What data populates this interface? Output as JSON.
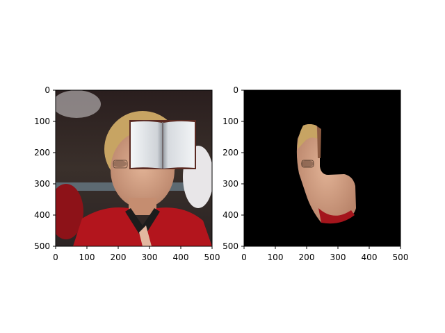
{
  "panels": [
    {
      "id": "left",
      "description_free": true,
      "x_ticks": [
        "0",
        "100",
        "200",
        "300",
        "400",
        "500"
      ],
      "y_ticks": [
        "0",
        "100",
        "200",
        "300",
        "400",
        "500"
      ]
    },
    {
      "id": "right",
      "x_ticks": [
        "0",
        "100",
        "200",
        "300",
        "400",
        "500"
      ],
      "y_ticks": [
        "0",
        "100",
        "200",
        "300",
        "400",
        "500"
      ]
    }
  ],
  "colors": {
    "mask_background": "#000000",
    "jacket_red": "#b0141c",
    "skin": "#d9a582",
    "hair": "#c8a664",
    "book_page": "#e9ebee"
  }
}
